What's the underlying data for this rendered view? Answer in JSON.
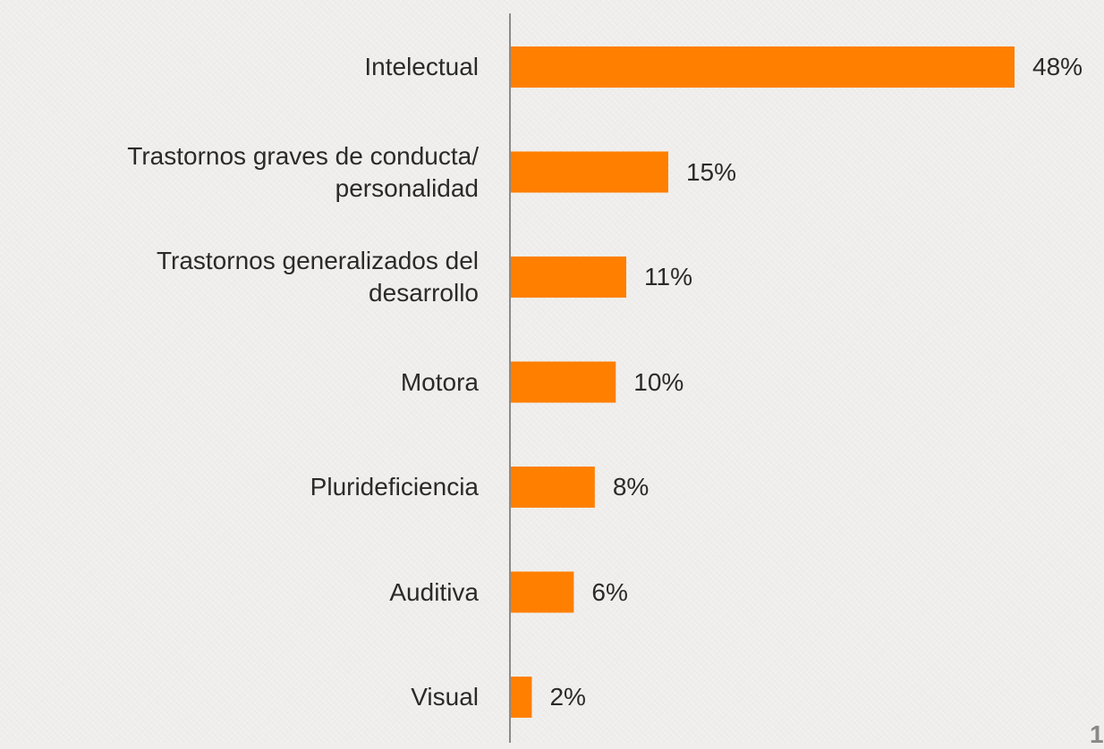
{
  "chart_data": {
    "type": "barh",
    "categories": [
      "Intelectual",
      "Trastornos graves de conducta/\npersonalidad",
      "Trastornos generalizados del\ndesarrollo",
      "Motora",
      "Pluridefi­ciencia",
      "Auditiva",
      "Visual"
    ],
    "values": [
      48,
      15,
      11,
      10,
      8,
      6,
      2
    ],
    "value_labels": [
      "48%",
      "15%",
      "11%",
      "10%",
      "8%",
      "6%",
      "2%"
    ],
    "color": "#ff7f00",
    "xlim": [
      0,
      48
    ]
  },
  "page_number": "1"
}
